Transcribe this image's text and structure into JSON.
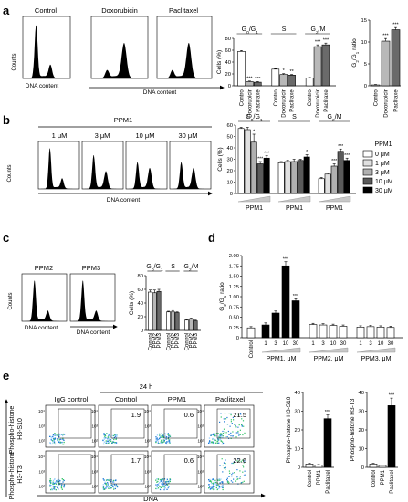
{
  "panel_letters": [
    "a",
    "b",
    "c",
    "d",
    "e"
  ],
  "axis_texts": {
    "counts": "Counts",
    "dna_content": "DNA content",
    "cells_pct": "Cells (%)",
    "g2g1_ratio": "G2/G1 ratio",
    "dna": "DNA",
    "time_24h": "24 h"
  },
  "phase_labels": [
    "G0/G1",
    "S",
    "G2/M"
  ],
  "phase_labels_rich": [
    {
      "main": "G",
      "sub1": "0",
      "mid": "/G",
      "sub2": "1"
    },
    {
      "main": "S"
    },
    {
      "main": "G",
      "sub1": "2",
      "mid": "/M"
    }
  ],
  "ratio_label_rich": {
    "main": "G",
    "sub1": "2",
    "mid": "/G",
    "sub2": "1",
    "tail": " ratio"
  },
  "panel_a": {
    "histograms": [
      "Control",
      "Doxorubicin",
      "Paclitaxel"
    ],
    "bar_categories": [
      "Control",
      "Doxorubicin",
      "Paclitaxel"
    ],
    "sig_marks": [
      "***",
      "**"
    ]
  },
  "panel_b": {
    "header": "PPM1",
    "histograms": [
      "1 μM",
      "3 μM",
      "10 μM",
      "30 μM"
    ],
    "group_label": "PPM1",
    "legend_title": "PPM1",
    "legend_items": [
      "0 μM",
      "1 μM",
      "3 μM",
      "10 μM",
      "30 μM"
    ]
  },
  "panel_c": {
    "histograms": [
      "PPM2",
      "PPM3"
    ],
    "bar_categories": [
      "Control",
      "PPM2",
      "PPM3"
    ]
  },
  "panel_d": {
    "control_label": "Control",
    "dose_ticks": [
      "1",
      "3",
      "10",
      "30"
    ],
    "group_labels": [
      "PPM1, μM",
      "PPM2, μM",
      "PPM3, μM"
    ]
  },
  "panel_e": {
    "columns": [
      "IgG control",
      "Control",
      "PPM1",
      "Paclitaxel"
    ],
    "row_labels": [
      "Phospho-histone H3-S10",
      "Phospho-histone H3-T3"
    ],
    "row1_values": [
      "",
      "1.9",
      "0.6",
      "21.5"
    ],
    "row2_values": [
      "",
      "1.7",
      "0.6",
      "22.6"
    ],
    "bar_categories": [
      "Control",
      "PPM1",
      "Paclitaxel"
    ],
    "bar_ylabels": [
      "Phospho-histone H3-S10",
      "Phospho-histone H3-T3"
    ]
  },
  "chart_data": [
    {
      "id": "a-cellcycle",
      "type": "bar",
      "ylabel": "Cells (%)",
      "ylim": [
        0,
        80
      ],
      "yticks": [
        0,
        20,
        40,
        60,
        80
      ],
      "groups": [
        "G0/G1",
        "S",
        "G2/M"
      ],
      "categories": [
        "Control",
        "Doxorubicin",
        "Paclitaxel"
      ],
      "values": [
        [
          58,
          7,
          6
        ],
        [
          28,
          19,
          18
        ],
        [
          13,
          66,
          69
        ]
      ],
      "errors": [
        [
          1.5,
          1,
          1
        ],
        [
          1,
          1.5,
          1
        ],
        [
          1,
          3,
          3
        ]
      ],
      "sig": [
        [
          "",
          "***",
          "***"
        ],
        [
          "",
          "*",
          "**"
        ],
        [
          "",
          "***",
          "***"
        ]
      ],
      "colors": [
        "#ffffff",
        "#b8b8b8",
        "#6a6a6a"
      ]
    },
    {
      "id": "a-ratio",
      "type": "bar",
      "ylabel": "G2/G1 ratio",
      "ylim": [
        0,
        15
      ],
      "yticks": [
        0,
        5,
        10,
        15
      ],
      "categories": [
        "Control",
        "Doxorubicin",
        "Paclitaxel"
      ],
      "values": [
        0.2,
        10.2,
        12.8
      ],
      "errors": [
        0.1,
        0.6,
        0.5
      ],
      "sig": [
        "",
        "***",
        "***"
      ],
      "colors": [
        "#ffffff",
        "#b8b8b8",
        "#6a6a6a"
      ]
    },
    {
      "id": "b-cellcycle",
      "type": "bar",
      "ylabel": "Cells (%)",
      "ylim": [
        0,
        60
      ],
      "yticks": [
        0,
        10,
        20,
        30,
        40,
        50,
        60
      ],
      "groups": [
        "G0/G1",
        "S",
        "G2/M"
      ],
      "series_names": [
        "0 μM",
        "1 μM",
        "3 μM",
        "10 μM",
        "30 μM"
      ],
      "values": [
        [
          57,
          56,
          45,
          26,
          31
        ],
        [
          27,
          28,
          28,
          29,
          32
        ],
        [
          13,
          17,
          24,
          37,
          29
        ]
      ],
      "errors": [
        [
          1,
          2,
          7,
          2,
          2
        ],
        [
          1,
          1,
          2,
          1,
          2
        ],
        [
          1,
          1,
          2,
          2,
          2
        ]
      ],
      "sig": [
        [
          "",
          "",
          "*",
          "***",
          "***"
        ],
        [
          "",
          "",
          "",
          "",
          "*"
        ],
        [
          "",
          "",
          "***",
          "***",
          "***"
        ]
      ],
      "colors": [
        "#ffffff",
        "#e0e0e0",
        "#b0b0b0",
        "#5a5a5a",
        "#000000"
      ]
    },
    {
      "id": "c-cellcycle",
      "type": "bar",
      "ylabel": "Cells (%)",
      "ylim": [
        0,
        80
      ],
      "yticks": [
        0,
        20,
        40,
        60,
        80
      ],
      "groups": [
        "G0/G1",
        "S",
        "G2/M"
      ],
      "categories": [
        "Control",
        "PPM2",
        "PPM3"
      ],
      "values": [
        [
          56,
          55,
          57
        ],
        [
          27,
          27,
          26
        ],
        [
          15,
          17,
          14
        ]
      ],
      "errors": [
        [
          3,
          4,
          3
        ],
        [
          1,
          2,
          1
        ],
        [
          1,
          1,
          1
        ]
      ],
      "colors": [
        "#ffffff",
        "#b8b8b8",
        "#6a6a6a"
      ]
    },
    {
      "id": "d-ratio",
      "type": "bar",
      "ylabel": "G2/G1 ratio",
      "ylim": [
        0,
        2.0
      ],
      "yticks": [
        0,
        0.25,
        0.5,
        0.75,
        1.0,
        1.25,
        1.5,
        1.75,
        2.0
      ],
      "ytick_labels": [
        "0",
        "0.25",
        "0.50",
        "0.75",
        "1.00",
        "1.25",
        "1.50",
        "1.75",
        "2.00"
      ],
      "categories": [
        "Control",
        "PPM1 1",
        "PPM1 3",
        "PPM1 10",
        "PPM1 30",
        "PPM2 1",
        "PPM2 3",
        "PPM2 10",
        "PPM2 30",
        "PPM3 1",
        "PPM3 3",
        "PPM3 10",
        "PPM3 30"
      ],
      "values": [
        0.24,
        0.31,
        0.6,
        1.75,
        0.9,
        0.32,
        0.31,
        0.3,
        0.28,
        0.26,
        0.27,
        0.26,
        0.25
      ],
      "errors": [
        0.03,
        0.05,
        0.05,
        0.1,
        0.05,
        0.03,
        0.03,
        0.03,
        0.03,
        0.03,
        0.03,
        0.03,
        0.03
      ],
      "sig": [
        "",
        "",
        "",
        "***",
        "***",
        "",
        "",
        "",
        "",
        "",
        "",
        "",
        ""
      ]
    },
    {
      "id": "e-s10",
      "type": "bar",
      "ylabel": "Phospho-histone H3-S10",
      "ylim": [
        0,
        40
      ],
      "yticks": [
        0,
        10,
        20,
        30,
        40
      ],
      "categories": [
        "Control",
        "PPM1",
        "Paclitaxel"
      ],
      "values": [
        1.8,
        1.2,
        26
      ],
      "errors": [
        0.3,
        0.3,
        2
      ],
      "sig": [
        "",
        "",
        "***"
      ],
      "colors": [
        "#ffffff",
        "#ffffff",
        "#000000"
      ]
    },
    {
      "id": "e-t3",
      "type": "bar",
      "ylabel": "Phospho-histone H3-T3",
      "ylim": [
        0,
        40
      ],
      "yticks": [
        0,
        10,
        20,
        30,
        40
      ],
      "categories": [
        "Control",
        "PPM1",
        "Paclitaxel"
      ],
      "values": [
        1.8,
        1.0,
        33
      ],
      "errors": [
        0.3,
        0.3,
        4
      ],
      "sig": [
        "",
        "",
        "***"
      ],
      "colors": [
        "#ffffff",
        "#ffffff",
        "#000000"
      ]
    }
  ]
}
